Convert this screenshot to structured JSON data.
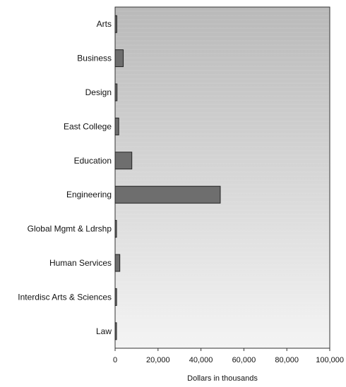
{
  "chart_data": {
    "type": "bar",
    "orientation": "horizontal",
    "categories": [
      "Arts",
      "Business",
      "Design",
      "East College",
      "Education",
      "Engineering",
      "Global Mgmt & Ldrshp",
      "Human Services",
      "Interdisc Arts & Sciences",
      "Law"
    ],
    "values": [
      800,
      3800,
      900,
      1700,
      7800,
      49000,
      300,
      2200,
      700,
      300
    ],
    "xlabel": "Dollars in thousands",
    "ylabel": "",
    "title": "",
    "xlim": [
      0,
      100000
    ],
    "x_ticks": [
      0,
      20000,
      40000,
      60000,
      80000,
      100000
    ],
    "x_tick_labels": [
      "0",
      "20,000",
      "40,000",
      "60,000",
      "80,000",
      "100,000"
    ],
    "grid": false,
    "legend": "none",
    "colors": {
      "bar_fill": "#6e6e6e",
      "bar_stroke": "#222222",
      "plot_bg_top": "#b9b9b9",
      "plot_bg_bottom": "#f4f4f4"
    }
  }
}
